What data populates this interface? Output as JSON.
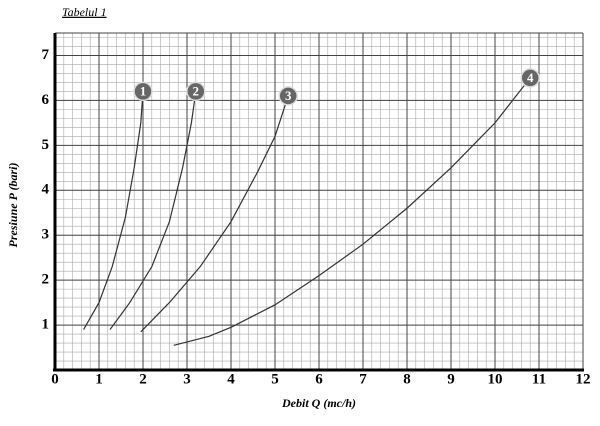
{
  "chart_data": {
    "type": "line",
    "title": "Tabelul 1",
    "x_label": "Debit Q (mc/h)",
    "y_label": "Presiune P (bari)",
    "xlim": [
      0,
      12
    ],
    "ylim": [
      0,
      7.5
    ],
    "xticks": [
      0,
      1,
      2,
      3,
      4,
      5,
      6,
      7,
      8,
      9,
      10,
      11,
      12
    ],
    "yticks": [
      1,
      2,
      3,
      4,
      5,
      6,
      7
    ],
    "grid": true,
    "minor_grid_divisions": 5,
    "series": [
      {
        "name": "1",
        "color": "#333333",
        "x": [
          0.65,
          1.0,
          1.3,
          1.6,
          1.8,
          1.95,
          2.0
        ],
        "values": [
          0.9,
          1.5,
          2.3,
          3.4,
          4.5,
          5.5,
          6.2
        ]
      },
      {
        "name": "2",
        "color": "#333333",
        "x": [
          1.25,
          1.7,
          2.2,
          2.6,
          2.9,
          3.1,
          3.2
        ],
        "values": [
          0.9,
          1.5,
          2.3,
          3.3,
          4.5,
          5.5,
          6.2
        ]
      },
      {
        "name": "3",
        "color": "#333333",
        "x": [
          1.95,
          2.6,
          3.3,
          4.0,
          4.6,
          5.0,
          5.3
        ],
        "values": [
          0.85,
          1.5,
          2.3,
          3.3,
          4.4,
          5.2,
          6.1
        ]
      },
      {
        "name": "4",
        "color": "#333333",
        "x": [
          2.7,
          3.5,
          4.0,
          5.0,
          6.0,
          7.0,
          8.0,
          9.0,
          10.0,
          10.8
        ],
        "values": [
          0.55,
          0.75,
          0.95,
          1.45,
          2.1,
          2.8,
          3.6,
          4.5,
          5.5,
          6.5
        ]
      }
    ]
  }
}
